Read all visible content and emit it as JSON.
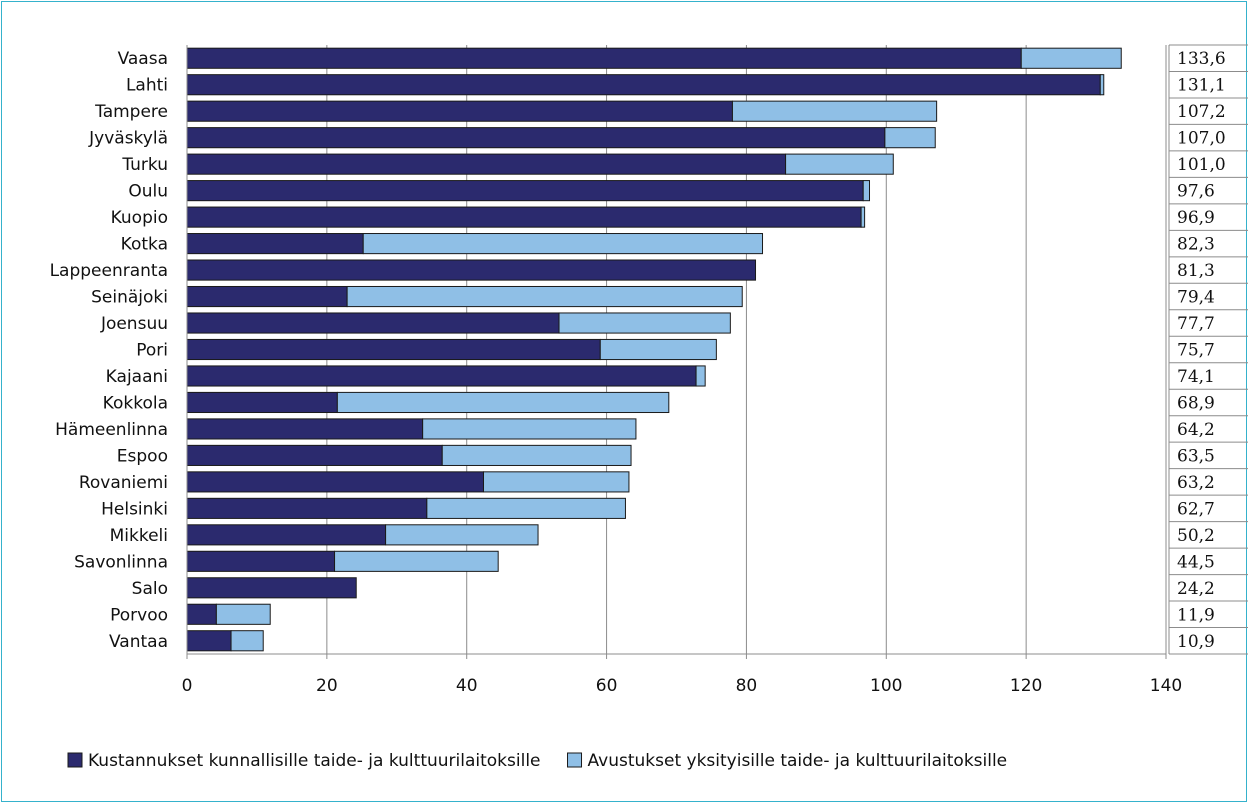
{
  "chart_data": {
    "type": "bar",
    "orientation": "horizontal",
    "stacked": true,
    "categories": [
      "Vaasa",
      "Lahti",
      "Tampere",
      "Jyväskylä",
      "Turku",
      "Oulu",
      "Kuopio",
      "Kotka",
      "Lappeenranta",
      "Seinäjoki",
      "Joensuu",
      "Pori",
      "Kajaani",
      "Kokkola",
      "Hämeenlinna",
      "Espoo",
      "Rovaniemi",
      "Helsinki",
      "Mikkeli",
      "Savonlinna",
      "Salo",
      "Porvoo",
      "Vantaa"
    ],
    "series": [
      {
        "name": "Kustannukset kunnallisille taide- ja kulttuurilaitoksille",
        "color": "#2b2a6e",
        "values": [
          119.3,
          130.6,
          78.0,
          99.8,
          85.6,
          96.7,
          96.4,
          25.2,
          81.3,
          22.9,
          53.2,
          59.1,
          72.8,
          21.5,
          33.7,
          36.5,
          42.4,
          34.3,
          28.4,
          21.1,
          24.2,
          4.2,
          6.3
        ]
      },
      {
        "name": "Avustukset yksityisille taide- ja kulttuurilaitoksille",
        "color": "#8fbfe6",
        "values": [
          14.3,
          0.5,
          29.2,
          7.2,
          15.4,
          0.9,
          0.5,
          57.1,
          0.0,
          56.5,
          24.5,
          16.6,
          1.3,
          47.4,
          30.5,
          27.0,
          20.8,
          28.4,
          21.8,
          23.4,
          0.0,
          7.7,
          4.6
        ]
      }
    ],
    "totals": [
      "133,6",
      "131,1",
      "107,2",
      "107,0",
      "101,0",
      "97,6",
      "96,9",
      "82,3",
      "81,3",
      "79,4",
      "77,7",
      "75,7",
      "74,1",
      "68,9",
      "64,2",
      "63,5",
      "63,2",
      "62,7",
      "50,2",
      "44,5",
      "24,2",
      "11,9",
      "10,9"
    ],
    "xlim": [
      0,
      140
    ],
    "xticks": [
      0,
      20,
      40,
      60,
      80,
      100,
      120,
      140
    ],
    "grid": true,
    "legend": "bottom",
    "title": "",
    "xlabel": "",
    "ylabel": ""
  }
}
